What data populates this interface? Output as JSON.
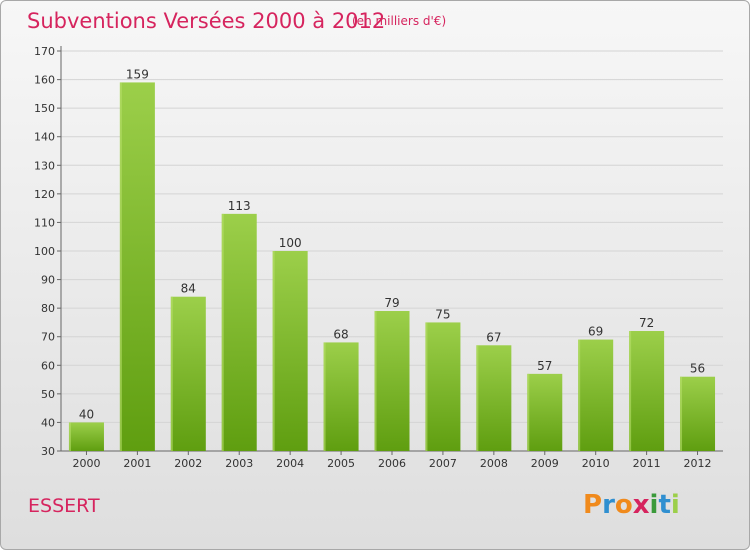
{
  "header": {
    "title": "Subventions Versées 2000 à 2012",
    "subtitle": "(en milliers d'€)"
  },
  "footer": {
    "place": "ESSERT",
    "logo": {
      "letters": [
        "P",
        "r",
        "o",
        "x",
        "i",
        "t",
        "i"
      ]
    }
  },
  "colors": {
    "title": "#d6245e",
    "bar_top": "#9ccf4a",
    "bar_bottom": "#5f9e10",
    "logo_letters": [
      "#f08a1c",
      "#2f8fd0",
      "#f08a1c",
      "#d6245e",
      "#3a9a3a",
      "#2f8fd0",
      "#9ccf4a"
    ]
  },
  "chart_data": {
    "type": "bar",
    "title": "Subventions Versées 2000 à 2012",
    "subtitle": "(en milliers d'€)",
    "categories": [
      "2000",
      "2001",
      "2002",
      "2003",
      "2004",
      "2005",
      "2006",
      "2007",
      "2008",
      "2009",
      "2010",
      "2011",
      "2012"
    ],
    "values": [
      40,
      159,
      84,
      113,
      100,
      68,
      79,
      75,
      67,
      57,
      69,
      72,
      56
    ],
    "ylim": [
      30,
      170
    ],
    "yticks": [
      30,
      40,
      50,
      60,
      70,
      80,
      90,
      100,
      110,
      120,
      130,
      140,
      150,
      160,
      170
    ],
    "grid": true,
    "data_labels": true
  }
}
